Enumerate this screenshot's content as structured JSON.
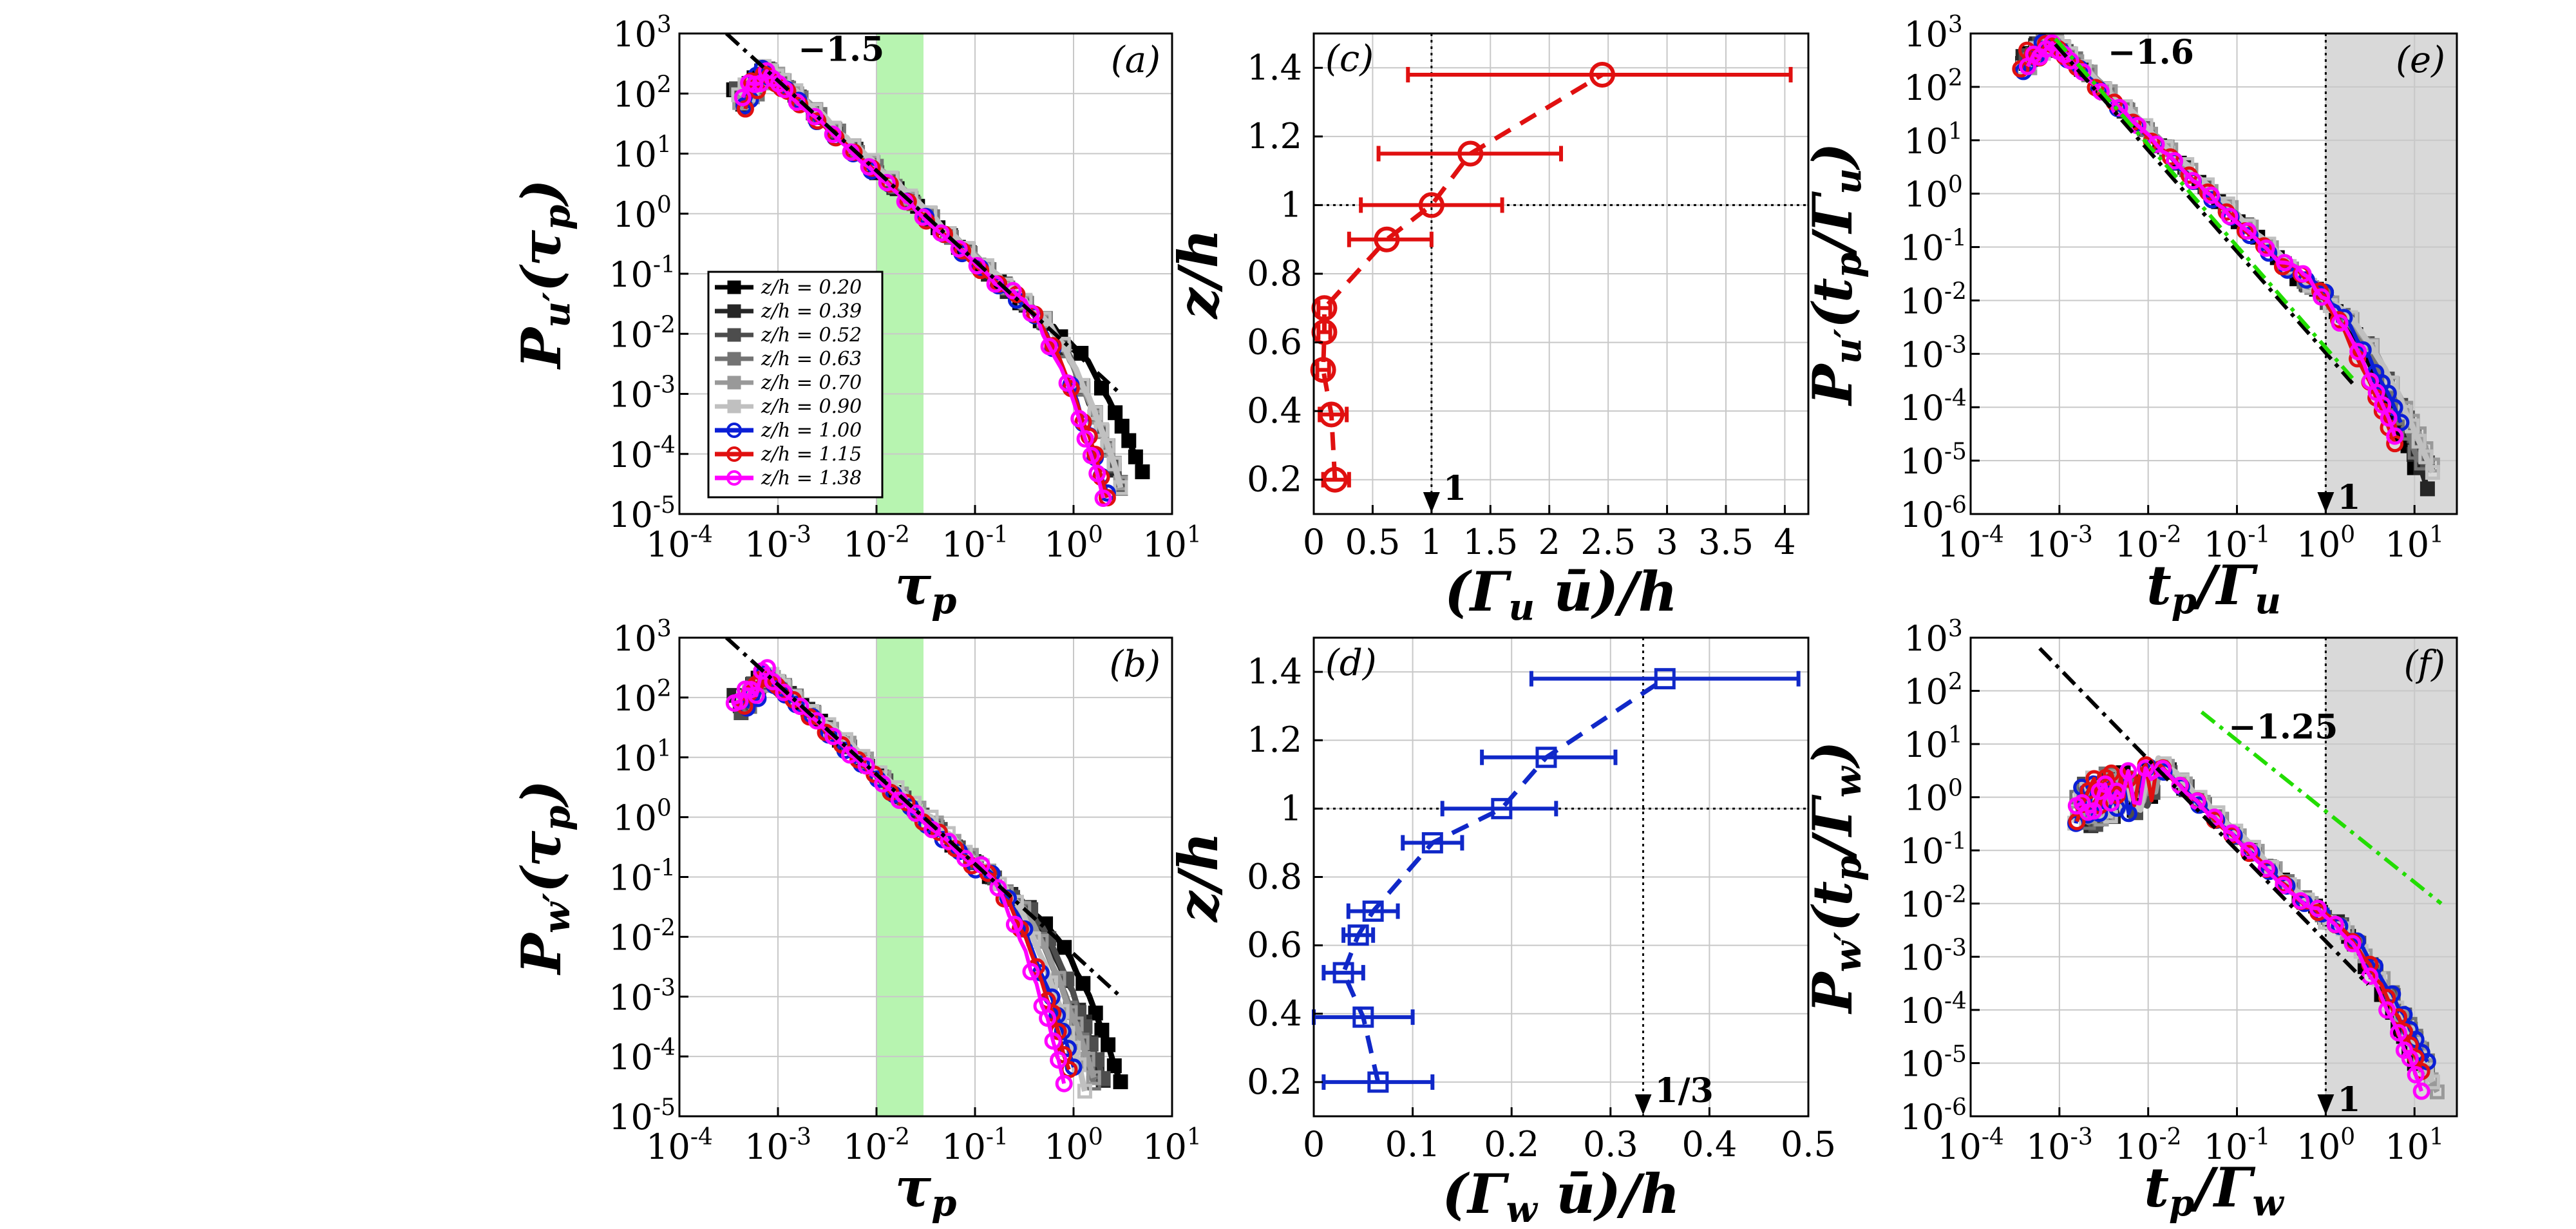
{
  "figure": {
    "colors": {
      "heights": [
        "#000000",
        "#262626",
        "#4d4d4d",
        "#737373",
        "#999999",
        "#c0c0c0",
        "#0b1fd6",
        "#e01010",
        "#ff00ff"
      ],
      "green_band": "#b7f4b0",
      "green_line": "#22dd00",
      "shade": "#d9d9d9",
      "red_profile": "#e01010",
      "blue_profile": "#1028c8"
    },
    "legend_labels": [
      "z/h = 0.20",
      "z/h = 0.39",
      "z/h = 0.52",
      "z/h = 0.63",
      "z/h = 0.70",
      "z/h = 0.90",
      "z/h = 1.00",
      "z/h = 1.15",
      "z/h = 1.38"
    ]
  },
  "chart_data": [
    {
      "id": "a",
      "type": "line",
      "panel_label": "(a)",
      "xlabel": "τp",
      "ylabel": "Pu′(τp)",
      "xscale": "log",
      "yscale": "log",
      "xlim": [
        0.0001,
        10
      ],
      "ylim": [
        1e-05,
        1000
      ],
      "x_ticks": [
        "-4",
        "-3",
        "-2",
        "-1",
        "0",
        "1"
      ],
      "y_ticks": [
        "-5",
        "-4",
        "-3",
        "-2",
        "-1",
        "0",
        "1",
        "2",
        "3"
      ],
      "green_band": [
        0.01,
        0.03
      ],
      "slope_annotation": "−1.5",
      "fit_line": {
        "slope": -1.5,
        "from": [
          0.0003,
          1000
        ],
        "to": [
          3,
          0.001
        ]
      },
      "legend": true,
      "series": [
        {
          "name": "z/h = 0.20",
          "tail_end": [
            5,
            5e-05
          ]
        },
        {
          "name": "z/h = 0.39",
          "tail_end": [
            3,
            3e-05
          ]
        },
        {
          "name": "z/h = 0.52",
          "tail_end": [
            3,
            3e-05
          ]
        },
        {
          "name": "z/h = 0.63",
          "tail_end": [
            3,
            3e-05
          ]
        },
        {
          "name": "z/h = 0.70",
          "tail_end": [
            3,
            3e-05
          ]
        },
        {
          "name": "z/h = 0.90",
          "tail_end": [
            3,
            3e-05
          ]
        },
        {
          "name": "z/h = 1.00",
          "tail_end": [
            2.2,
            2e-05
          ]
        },
        {
          "name": "z/h = 1.15",
          "tail_end": [
            2.2,
            2e-05
          ]
        },
        {
          "name": "z/h = 1.38",
          "tail_end": [
            2,
            2e-05
          ]
        }
      ]
    },
    {
      "id": "b",
      "type": "line",
      "panel_label": "(b)",
      "xlabel": "τp",
      "ylabel": "Pw′(τp)",
      "xscale": "log",
      "yscale": "log",
      "xlim": [
        0.0001,
        10
      ],
      "ylim": [
        1e-05,
        1000
      ],
      "x_ticks": [
        "-4",
        "-3",
        "-2",
        "-1",
        "0",
        "1"
      ],
      "y_ticks": [
        "-5",
        "-4",
        "-3",
        "-2",
        "-1",
        "0",
        "1",
        "2",
        "3"
      ],
      "green_band": [
        0.01,
        0.03
      ],
      "fit_line": {
        "slope": -1.5,
        "from": [
          0.0003,
          1000
        ],
        "to": [
          3,
          0.001
        ]
      },
      "series": [
        {
          "name": "z/h = 0.20",
          "tail_end": [
            3,
            4e-05
          ]
        },
        {
          "name": "z/h = 0.39",
          "tail_end": [
            2,
            4e-05
          ]
        },
        {
          "name": "z/h = 0.52",
          "tail_end": [
            2,
            4e-05
          ]
        },
        {
          "name": "z/h = 0.63",
          "tail_end": [
            1.6,
            4e-05
          ]
        },
        {
          "name": "z/h = 0.70",
          "tail_end": [
            1.6,
            4e-05
          ]
        },
        {
          "name": "z/h = 0.90",
          "tail_end": [
            1.3,
            3e-05
          ]
        },
        {
          "name": "z/h = 1.00",
          "tail_end": [
            1,
            6e-05
          ]
        },
        {
          "name": "z/h = 1.15",
          "tail_end": [
            0.9,
            6e-05
          ]
        },
        {
          "name": "z/h = 1.38",
          "tail_end": [
            0.8,
            4e-05
          ]
        }
      ]
    },
    {
      "id": "c",
      "type": "scatter",
      "panel_label": "(c)",
      "xlabel": "(Γu ū)/h",
      "ylabel": "z/h",
      "xlim": [
        0,
        4.2
      ],
      "ylim": [
        0.1,
        1.5
      ],
      "x_ticks": [
        "0",
        "0.5",
        "1",
        "1.5",
        "2",
        "2.5",
        "3",
        "3.5",
        "4"
      ],
      "x_tick_values": [
        0,
        0.5,
        1,
        1.5,
        2,
        2.5,
        3,
        3.5,
        4
      ],
      "y_ticks": [
        "0.2",
        "0.4",
        "0.6",
        "0.8",
        "1",
        "1.2",
        "1.4"
      ],
      "y_tick_values": [
        0.2,
        0.4,
        0.6,
        0.8,
        1,
        1.2,
        1.4
      ],
      "vline": 1,
      "hline": 1,
      "vline_label": "1",
      "points": [
        {
          "x": 0.18,
          "y": 0.2,
          "xmin": 0.08,
          "xmax": 0.3
        },
        {
          "x": 0.15,
          "y": 0.39,
          "xmin": 0.05,
          "xmax": 0.28
        },
        {
          "x": 0.08,
          "y": 0.52,
          "xmin": 0.03,
          "xmax": 0.13
        },
        {
          "x": 0.09,
          "y": 0.63,
          "xmin": 0.04,
          "xmax": 0.14
        },
        {
          "x": 0.09,
          "y": 0.7,
          "xmin": 0.04,
          "xmax": 0.14
        },
        {
          "x": 0.62,
          "y": 0.9,
          "xmin": 0.3,
          "xmax": 1.0
        },
        {
          "x": 1.0,
          "y": 1.0,
          "xmin": 0.4,
          "xmax": 1.6
        },
        {
          "x": 1.33,
          "y": 1.15,
          "xmin": 0.55,
          "xmax": 2.1
        },
        {
          "x": 2.45,
          "y": 1.38,
          "xmin": 0.8,
          "xmax": 4.05
        }
      ]
    },
    {
      "id": "d",
      "type": "scatter",
      "panel_label": "(d)",
      "xlabel": "(Γw ū)/h",
      "ylabel": "z/h",
      "xlim": [
        0,
        0.5
      ],
      "ylim": [
        0.1,
        1.5
      ],
      "x_ticks": [
        "0",
        "0.1",
        "0.2",
        "0.3",
        "0.4",
        "0.5"
      ],
      "x_tick_values": [
        0,
        0.1,
        0.2,
        0.3,
        0.4,
        0.5
      ],
      "y_ticks": [
        "0.2",
        "0.4",
        "0.6",
        "0.8",
        "1",
        "1.2",
        "1.4"
      ],
      "y_tick_values": [
        0.2,
        0.4,
        0.6,
        0.8,
        1,
        1.2,
        1.4
      ],
      "vline": 0.333,
      "hline": 1,
      "vline_label": "1/3",
      "points": [
        {
          "x": 0.065,
          "y": 0.2,
          "xmin": 0.01,
          "xmax": 0.12
        },
        {
          "x": 0.05,
          "y": 0.39,
          "xmin": 0.0,
          "xmax": 0.1
        },
        {
          "x": 0.03,
          "y": 0.52,
          "xmin": 0.01,
          "xmax": 0.05
        },
        {
          "x": 0.045,
          "y": 0.63,
          "xmin": 0.03,
          "xmax": 0.06
        },
        {
          "x": 0.06,
          "y": 0.7,
          "xmin": 0.035,
          "xmax": 0.085
        },
        {
          "x": 0.12,
          "y": 0.9,
          "xmin": 0.09,
          "xmax": 0.15
        },
        {
          "x": 0.19,
          "y": 1.0,
          "xmin": 0.13,
          "xmax": 0.245
        },
        {
          "x": 0.235,
          "y": 1.15,
          "xmin": 0.17,
          "xmax": 0.305
        },
        {
          "x": 0.355,
          "y": 1.38,
          "xmin": 0.22,
          "xmax": 0.49
        }
      ]
    },
    {
      "id": "e",
      "type": "line",
      "panel_label": "(e)",
      "xlabel": "tp/Γu",
      "ylabel": "Pu′(tp/Γu)",
      "xscale": "log",
      "yscale": "log",
      "xlim": [
        0.0001,
        30
      ],
      "ylim": [
        1e-06,
        1000
      ],
      "x_ticks": [
        "-4",
        "-3",
        "-2",
        "-1",
        "0",
        "1"
      ],
      "y_ticks": [
        "-6",
        "-5",
        "-4",
        "-3",
        "-2",
        "-1",
        "0",
        "1",
        "2",
        "3"
      ],
      "shade_from": 1,
      "vline": 1,
      "vline_label": "1",
      "slope_annotation": "−1.6",
      "fit_line": {
        "slope": -1.6,
        "from": [
          0.0009,
          630
        ],
        "to": [
          2,
          0.00028
        ]
      },
      "green_line": {
        "slope": -1.6,
        "from": [
          0.0009,
          800
        ],
        "to": [
          2,
          0.00035
        ]
      },
      "series": [
        {
          "name": "z/h = 0.20",
          "tail_end": [
            10,
            8e-06
          ]
        },
        {
          "name": "z/h = 0.39",
          "tail_end": [
            14,
            3e-06
          ]
        },
        {
          "name": "z/h = 0.52",
          "tail_end": [
            14,
            8e-06
          ]
        },
        {
          "name": "z/h = 0.63",
          "tail_end": [
            12,
            8e-06
          ]
        },
        {
          "name": "z/h = 0.70",
          "tail_end": [
            16,
            8e-06
          ]
        },
        {
          "name": "z/h = 0.90",
          "tail_end": [
            16,
            6e-06
          ]
        },
        {
          "name": "z/h = 1.00",
          "tail_end": [
            7,
            5e-05
          ]
        },
        {
          "name": "z/h = 1.15",
          "tail_end": [
            6,
            2e-05
          ]
        },
        {
          "name": "z/h = 1.38",
          "tail_end": [
            6,
            3e-05
          ]
        }
      ]
    },
    {
      "id": "f",
      "type": "line",
      "panel_label": "(f)",
      "xlabel": "tp/Γw",
      "ylabel": "Pw′(tp/Γw)",
      "xscale": "log",
      "yscale": "log",
      "xlim": [
        0.0001,
        30
      ],
      "ylim": [
        1e-06,
        1000
      ],
      "x_ticks": [
        "-4",
        "-3",
        "-2",
        "-1",
        "0",
        "1"
      ],
      "y_ticks": [
        "-6",
        "-5",
        "-4",
        "-3",
        "-2",
        "-1",
        "0",
        "1",
        "2",
        "3"
      ],
      "shade_from": 1,
      "vline": 1,
      "vline_label": "1",
      "slope_annotation": "−1.25",
      "fit_line": {
        "slope": -1.6,
        "from": [
          0.0006,
          630
        ],
        "to": [
          3,
          0.0003
        ]
      },
      "green_line": {
        "slope": -1.25,
        "from": [
          0.04,
          40
        ],
        "to": [
          20,
          0.01
        ]
      },
      "series": [
        {
          "name": "z/h = 0.20",
          "tail_end": [
            10,
            1e-05
          ]
        },
        {
          "name": "z/h = 0.39",
          "tail_end": [
            12,
            1e-05
          ]
        },
        {
          "name": "z/h = 0.52",
          "tail_end": [
            14,
            1e-05
          ]
        },
        {
          "name": "z/h = 0.63",
          "tail_end": [
            14,
            1e-05
          ]
        },
        {
          "name": "z/h = 0.70",
          "tail_end": [
            18,
            3e-06
          ]
        },
        {
          "name": "z/h = 0.90",
          "tail_end": [
            16,
            4e-06
          ]
        },
        {
          "name": "z/h = 1.00",
          "tail_end": [
            14,
            1e-05
          ]
        },
        {
          "name": "z/h = 1.15",
          "tail_end": [
            12,
            8e-06
          ]
        },
        {
          "name": "z/h = 1.38",
          "tail_end": [
            12,
            3e-06
          ]
        }
      ]
    }
  ]
}
